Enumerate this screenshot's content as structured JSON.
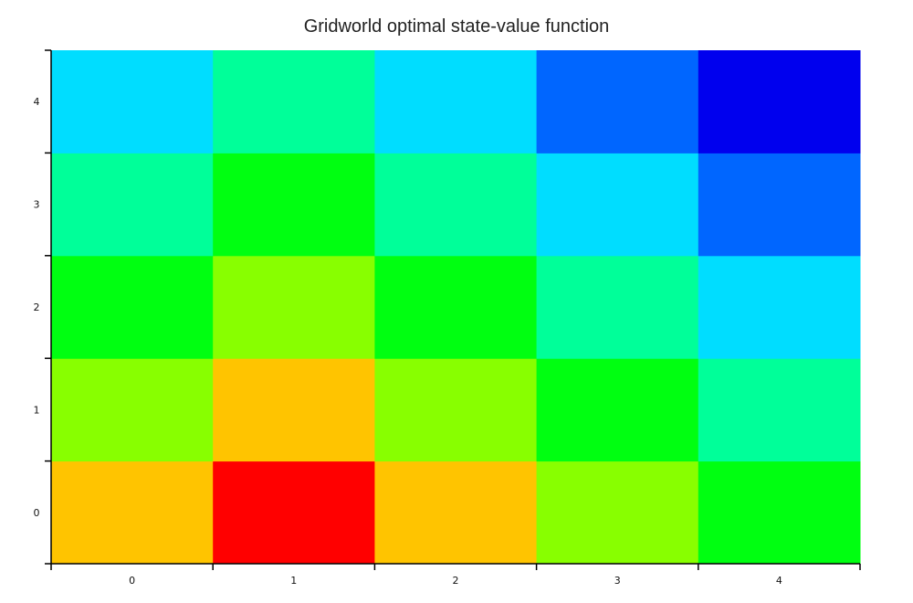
{
  "chart_data": {
    "type": "heatmap",
    "title": "Gridworld optimal state-value function",
    "xlabel": "",
    "ylabel": "",
    "x_categories": [
      "0",
      "1",
      "2",
      "3",
      "4"
    ],
    "y_categories": [
      "0",
      "1",
      "2",
      "3",
      "4"
    ],
    "y_order": "bottom-to-top",
    "colormap": "jet",
    "grid": false,
    "legend": "none",
    "values": [
      [
        6,
        7,
        6,
        5,
        4
      ],
      [
        5,
        6,
        5,
        4,
        3
      ],
      [
        4,
        5,
        4,
        3,
        2
      ],
      [
        3,
        4,
        3,
        2,
        1
      ],
      [
        2,
        3,
        2,
        1,
        0
      ]
    ],
    "value_scale": [
      0,
      7
    ],
    "colors": {
      "0": "#0000ee",
      "1": "#0066ff",
      "2": "#00ddff",
      "3": "#00ff99",
      "4": "#00ff11",
      "5": "#88ff00",
      "6": "#ffc400",
      "7": "#ff0000"
    }
  }
}
